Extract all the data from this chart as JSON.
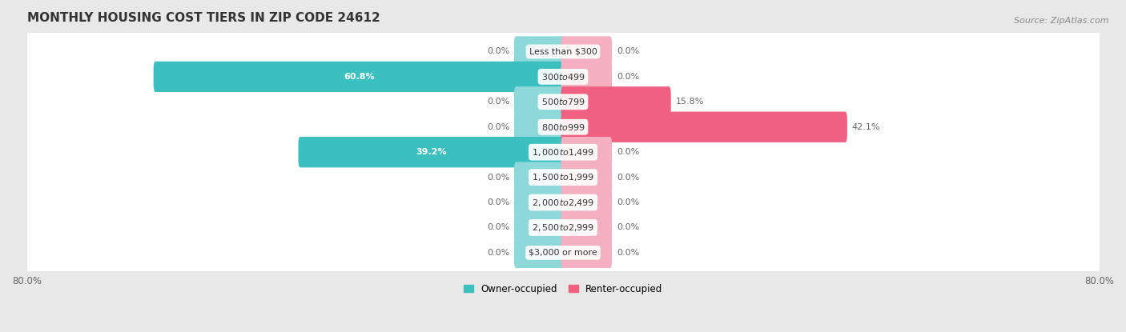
{
  "title": "MONTHLY HOUSING COST TIERS IN ZIP CODE 24612",
  "source": "Source: ZipAtlas.com",
  "categories": [
    "Less than $300",
    "$300 to $499",
    "$500 to $799",
    "$800 to $999",
    "$1,000 to $1,499",
    "$1,500 to $1,999",
    "$2,000 to $2,499",
    "$2,500 to $2,999",
    "$3,000 or more"
  ],
  "owner_values": [
    0.0,
    60.8,
    0.0,
    0.0,
    39.2,
    0.0,
    0.0,
    0.0,
    0.0
  ],
  "renter_values": [
    0.0,
    0.0,
    15.8,
    42.1,
    0.0,
    0.0,
    0.0,
    0.0,
    0.0
  ],
  "owner_color": "#3bbfbf",
  "owner_color_light": "#8dd8d8",
  "renter_color": "#f06080",
  "renter_color_light": "#f4b0c0",
  "axis_limit": 80.0,
  "bg_color": "#e8e8e8",
  "row_bg_color": "#f0f0f0",
  "label_color": "#666666",
  "title_color": "#333333",
  "source_color": "#888888",
  "stub_size": 7.0,
  "bar_height": 0.62
}
